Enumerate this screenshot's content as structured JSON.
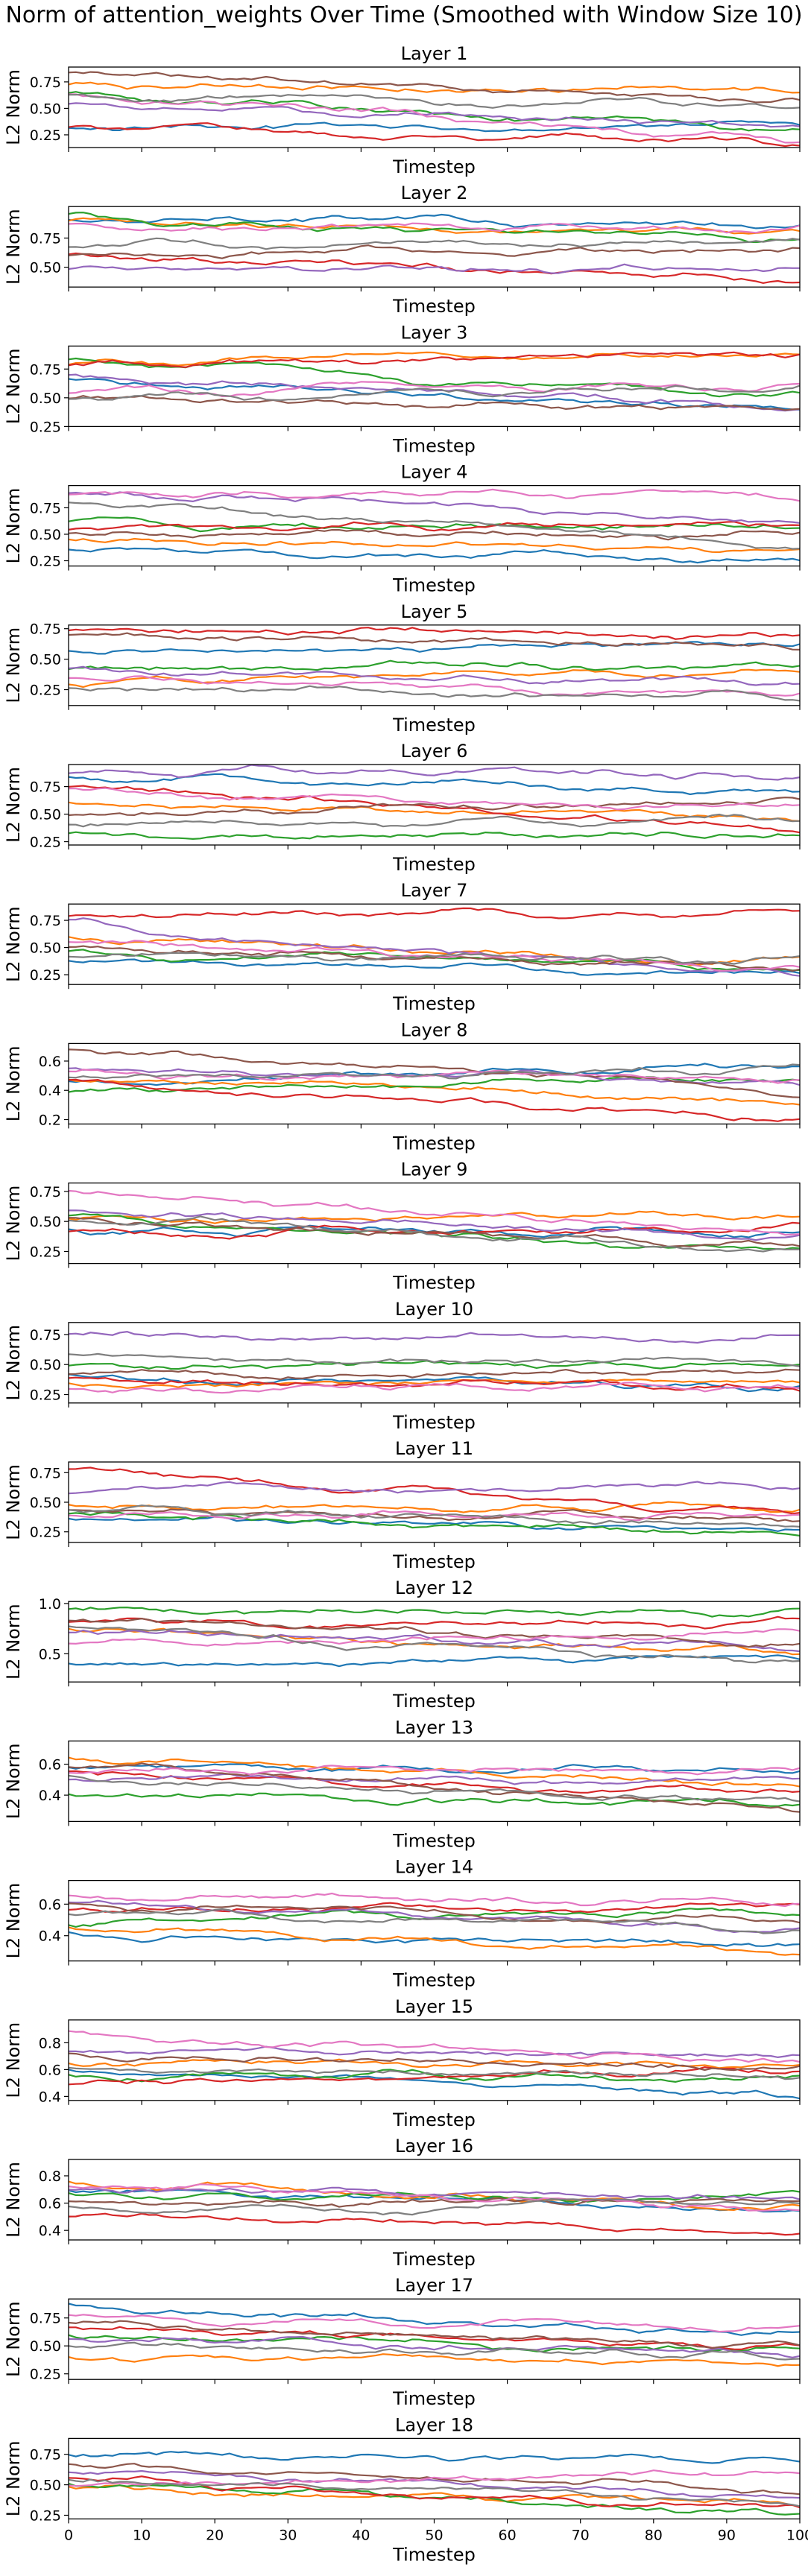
{
  "figure": {
    "title": "Norm of attention_weights Over Time (Smoothed with Window Size 10)",
    "colors": [
      "#1f77b4",
      "#ff7f0e",
      "#2ca02c",
      "#d62728",
      "#9467bd",
      "#8c564b",
      "#e377c2",
      "#7f7f7f"
    ]
  },
  "chart_data": [
    {
      "type": "line",
      "title": "Layer 1",
      "xlabel": "Timestep",
      "ylabel": "L2 Norm",
      "xlim": [
        0,
        100
      ],
      "ylim": [
        0.13,
        0.89
      ],
      "yticks": [
        "0.25",
        "0.50",
        "0.75"
      ],
      "ytick_values": [
        0.25,
        0.5,
        0.75
      ],
      "x_ticks_labeled": false,
      "series": [
        {
          "start": 0.33,
          "end": 0.32
        },
        {
          "start": 0.72,
          "end": 0.65
        },
        {
          "start": 0.62,
          "end": 0.3
        },
        {
          "start": 0.35,
          "end": 0.17
        },
        {
          "start": 0.55,
          "end": 0.35
        },
        {
          "start": 0.85,
          "end": 0.6
        },
        {
          "start": 0.65,
          "end": 0.2
        },
        {
          "start": 0.6,
          "end": 0.55
        }
      ]
    },
    {
      "type": "line",
      "title": "Layer 2",
      "xlabel": "Timestep",
      "ylabel": "L2 Norm",
      "xlim": [
        0,
        100
      ],
      "ylim": [
        0.33,
        1.02
      ],
      "yticks": [
        "0.50",
        "0.75"
      ],
      "ytick_values": [
        0.5,
        0.75
      ],
      "x_ticks_labeled": false,
      "series": [
        {
          "start": 0.95,
          "end": 0.85
        },
        {
          "start": 0.88,
          "end": 0.8
        },
        {
          "start": 0.92,
          "end": 0.75
        },
        {
          "start": 0.6,
          "end": 0.38
        },
        {
          "start": 0.5,
          "end": 0.48
        },
        {
          "start": 0.62,
          "end": 0.65
        },
        {
          "start": 0.85,
          "end": 0.82
        },
        {
          "start": 0.7,
          "end": 0.72
        }
      ]
    },
    {
      "type": "line",
      "title": "Layer 3",
      "xlabel": "Timestep",
      "ylabel": "L2 Norm",
      "xlim": [
        0,
        100
      ],
      "ylim": [
        0.25,
        0.95
      ],
      "yticks": [
        "0.25",
        "0.50",
        "0.75"
      ],
      "ytick_values": [
        0.25,
        0.5,
        0.75
      ],
      "x_ticks_labeled": false,
      "series": [
        {
          "start": 0.65,
          "end": 0.4
        },
        {
          "start": 0.8,
          "end": 0.88
        },
        {
          "start": 0.85,
          "end": 0.5
        },
        {
          "start": 0.78,
          "end": 0.9
        },
        {
          "start": 0.7,
          "end": 0.4
        },
        {
          "start": 0.5,
          "end": 0.38
        },
        {
          "start": 0.55,
          "end": 0.62
        },
        {
          "start": 0.48,
          "end": 0.58
        }
      ]
    },
    {
      "type": "line",
      "title": "Layer 4",
      "xlabel": "Timestep",
      "ylabel": "L2 Norm",
      "xlim": [
        0,
        100
      ],
      "ylim": [
        0.2,
        0.96
      ],
      "yticks": [
        "0.25",
        "0.50",
        "0.75"
      ],
      "ytick_values": [
        0.25,
        0.5,
        0.75
      ],
      "x_ticks_labeled": false,
      "series": [
        {
          "start": 0.35,
          "end": 0.27
        },
        {
          "start": 0.45,
          "end": 0.35
        },
        {
          "start": 0.6,
          "end": 0.55
        },
        {
          "start": 0.55,
          "end": 0.6
        },
        {
          "start": 0.9,
          "end": 0.62
        },
        {
          "start": 0.5,
          "end": 0.48
        },
        {
          "start": 0.92,
          "end": 0.85
        },
        {
          "start": 0.8,
          "end": 0.4
        }
      ]
    },
    {
      "type": "line",
      "title": "Layer 5",
      "xlabel": "Timestep",
      "ylabel": "L2 Norm",
      "xlim": [
        0,
        100
      ],
      "ylim": [
        0.12,
        0.78
      ],
      "yticks": [
        "0.25",
        "0.50",
        "0.75"
      ],
      "ytick_values": [
        0.25,
        0.5,
        0.75
      ],
      "x_ticks_labeled": false,
      "series": [
        {
          "start": 0.55,
          "end": 0.65
        },
        {
          "start": 0.3,
          "end": 0.4
        },
        {
          "start": 0.45,
          "end": 0.45
        },
        {
          "start": 0.75,
          "end": 0.7
        },
        {
          "start": 0.4,
          "end": 0.3
        },
        {
          "start": 0.7,
          "end": 0.6
        },
        {
          "start": 0.35,
          "end": 0.22
        },
        {
          "start": 0.25,
          "end": 0.18
        }
      ]
    },
    {
      "type": "line",
      "title": "Layer 6",
      "xlabel": "Timestep",
      "ylabel": "L2 Norm",
      "xlim": [
        0,
        100
      ],
      "ylim": [
        0.22,
        0.95
      ],
      "yticks": [
        "0.25",
        "0.50",
        "0.75"
      ],
      "ytick_values": [
        0.25,
        0.5,
        0.75
      ],
      "x_ticks_labeled": false,
      "series": [
        {
          "start": 0.85,
          "end": 0.7
        },
        {
          "start": 0.6,
          "end": 0.48
        },
        {
          "start": 0.3,
          "end": 0.3
        },
        {
          "start": 0.75,
          "end": 0.35
        },
        {
          "start": 0.9,
          "end": 0.85
        },
        {
          "start": 0.5,
          "end": 0.65
        },
        {
          "start": 0.7,
          "end": 0.55
        },
        {
          "start": 0.4,
          "end": 0.45
        }
      ]
    },
    {
      "type": "line",
      "title": "Layer 7",
      "xlabel": "Timestep",
      "ylabel": "L2 Norm",
      "xlim": [
        0,
        100
      ],
      "ylim": [
        0.16,
        0.9
      ],
      "yticks": [
        "0.25",
        "0.50",
        "0.75"
      ],
      "ytick_values": [
        0.25,
        0.5,
        0.75
      ],
      "x_ticks_labeled": false,
      "series": [
        {
          "start": 0.4,
          "end": 0.25
        },
        {
          "start": 0.6,
          "end": 0.35
        },
        {
          "start": 0.45,
          "end": 0.3
        },
        {
          "start": 0.8,
          "end": 0.82
        },
        {
          "start": 0.7,
          "end": 0.22
        },
        {
          "start": 0.5,
          "end": 0.28
        },
        {
          "start": 0.55,
          "end": 0.3
        },
        {
          "start": 0.42,
          "end": 0.4
        }
      ]
    },
    {
      "type": "line",
      "title": "Layer 8",
      "xlabel": "Timestep",
      "ylabel": "L2 Norm",
      "xlim": [
        0,
        100
      ],
      "ylim": [
        0.17,
        0.72
      ],
      "yticks": [
        "0.2",
        "0.4",
        "0.6"
      ],
      "ytick_values": [
        0.2,
        0.4,
        0.6
      ],
      "x_ticks_labeled": false,
      "series": [
        {
          "start": 0.45,
          "end": 0.58
        },
        {
          "start": 0.5,
          "end": 0.3
        },
        {
          "start": 0.4,
          "end": 0.5
        },
        {
          "start": 0.45,
          "end": 0.2
        },
        {
          "start": 0.55,
          "end": 0.45
        },
        {
          "start": 0.7,
          "end": 0.4
        },
        {
          "start": 0.5,
          "end": 0.5
        },
        {
          "start": 0.48,
          "end": 0.55
        }
      ]
    },
    {
      "type": "line",
      "title": "Layer 9",
      "xlabel": "Timestep",
      "ylabel": "L2 Norm",
      "xlim": [
        0,
        100
      ],
      "ylim": [
        0.15,
        0.82
      ],
      "yticks": [
        "0.25",
        "0.50",
        "0.75"
      ],
      "ytick_values": [
        0.25,
        0.5,
        0.75
      ],
      "x_ticks_labeled": false,
      "series": [
        {
          "start": 0.45,
          "end": 0.4
        },
        {
          "start": 0.5,
          "end": 0.55
        },
        {
          "start": 0.55,
          "end": 0.22
        },
        {
          "start": 0.4,
          "end": 0.45
        },
        {
          "start": 0.6,
          "end": 0.35
        },
        {
          "start": 0.5,
          "end": 0.3
        },
        {
          "start": 0.75,
          "end": 0.4
        },
        {
          "start": 0.55,
          "end": 0.25
        }
      ]
    },
    {
      "type": "line",
      "title": "Layer 10",
      "xlabel": "Timestep",
      "ylabel": "L2 Norm",
      "xlim": [
        0,
        100
      ],
      "ylim": [
        0.18,
        0.85
      ],
      "yticks": [
        "0.25",
        "0.50",
        "0.75"
      ],
      "ytick_values": [
        0.25,
        0.5,
        0.75
      ],
      "x_ticks_labeled": false,
      "series": [
        {
          "start": 0.4,
          "end": 0.3
        },
        {
          "start": 0.35,
          "end": 0.35
        },
        {
          "start": 0.5,
          "end": 0.5
        },
        {
          "start": 0.4,
          "end": 0.3
        },
        {
          "start": 0.75,
          "end": 0.72
        },
        {
          "start": 0.42,
          "end": 0.45
        },
        {
          "start": 0.3,
          "end": 0.32
        },
        {
          "start": 0.55,
          "end": 0.5
        }
      ]
    },
    {
      "type": "line",
      "title": "Layer 11",
      "xlabel": "Timestep",
      "ylabel": "L2 Norm",
      "xlim": [
        0,
        100
      ],
      "ylim": [
        0.16,
        0.84
      ],
      "yticks": [
        "0.25",
        "0.50",
        "0.75"
      ],
      "ytick_values": [
        0.25,
        0.5,
        0.75
      ],
      "x_ticks_labeled": false,
      "series": [
        {
          "start": 0.35,
          "end": 0.28
        },
        {
          "start": 0.45,
          "end": 0.45
        },
        {
          "start": 0.4,
          "end": 0.25
        },
        {
          "start": 0.78,
          "end": 0.4
        },
        {
          "start": 0.6,
          "end": 0.65
        },
        {
          "start": 0.42,
          "end": 0.35
        },
        {
          "start": 0.4,
          "end": 0.38
        },
        {
          "start": 0.45,
          "end": 0.3
        }
      ]
    },
    {
      "type": "line",
      "title": "Layer 12",
      "xlabel": "Timestep",
      "ylabel": "L2 Norm",
      "xlim": [
        0,
        100
      ],
      "ylim": [
        0.22,
        1.02
      ],
      "yticks": [
        "0.5",
        "1.0"
      ],
      "ytick_values": [
        0.5,
        1.0
      ],
      "x_ticks_labeled": false,
      "series": [
        {
          "start": 0.4,
          "end": 0.45
        },
        {
          "start": 0.75,
          "end": 0.5
        },
        {
          "start": 0.95,
          "end": 0.9
        },
        {
          "start": 0.8,
          "end": 0.8
        },
        {
          "start": 0.7,
          "end": 0.55
        },
        {
          "start": 0.85,
          "end": 0.6
        },
        {
          "start": 0.6,
          "end": 0.7
        },
        {
          "start": 0.75,
          "end": 0.4
        }
      ]
    },
    {
      "type": "line",
      "title": "Layer 13",
      "xlabel": "Timestep",
      "ylabel": "L2 Norm",
      "xlim": [
        0,
        100
      ],
      "ylim": [
        0.23,
        0.75
      ],
      "yticks": [
        "0.4",
        "0.6"
      ],
      "ytick_values": [
        0.4,
        0.6
      ],
      "x_ticks_labeled": false,
      "series": [
        {
          "start": 0.6,
          "end": 0.55
        },
        {
          "start": 0.65,
          "end": 0.45
        },
        {
          "start": 0.4,
          "end": 0.35
        },
        {
          "start": 0.55,
          "end": 0.4
        },
        {
          "start": 0.5,
          "end": 0.5
        },
        {
          "start": 0.6,
          "end": 0.3
        },
        {
          "start": 0.55,
          "end": 0.55
        },
        {
          "start": 0.5,
          "end": 0.35
        }
      ]
    },
    {
      "type": "line",
      "title": "Layer 14",
      "xlabel": "Timestep",
      "ylabel": "L2 Norm",
      "xlim": [
        0,
        100
      ],
      "ylim": [
        0.24,
        0.75
      ],
      "yticks": [
        "0.4",
        "0.6"
      ],
      "ytick_values": [
        0.4,
        0.6
      ],
      "x_ticks_labeled": false,
      "series": [
        {
          "start": 0.4,
          "end": 0.35
        },
        {
          "start": 0.45,
          "end": 0.3
        },
        {
          "start": 0.5,
          "end": 0.55
        },
        {
          "start": 0.55,
          "end": 0.6
        },
        {
          "start": 0.6,
          "end": 0.45
        },
        {
          "start": 0.58,
          "end": 0.5
        },
        {
          "start": 0.65,
          "end": 0.62
        },
        {
          "start": 0.55,
          "end": 0.45
        }
      ]
    },
    {
      "type": "line",
      "title": "Layer 15",
      "xlabel": "Timestep",
      "ylabel": "L2 Norm",
      "xlim": [
        0,
        100
      ],
      "ylim": [
        0.37,
        0.97
      ],
      "yticks": [
        "0.4",
        "0.6",
        "0.8"
      ],
      "ytick_values": [
        0.4,
        0.6,
        0.8
      ],
      "x_ticks_labeled": false,
      "series": [
        {
          "start": 0.6,
          "end": 0.4
        },
        {
          "start": 0.65,
          "end": 0.65
        },
        {
          "start": 0.55,
          "end": 0.55
        },
        {
          "start": 0.5,
          "end": 0.6
        },
        {
          "start": 0.75,
          "end": 0.7
        },
        {
          "start": 0.7,
          "end": 0.6
        },
        {
          "start": 0.85,
          "end": 0.65
        },
        {
          "start": 0.6,
          "end": 0.55
        }
      ]
    },
    {
      "type": "line",
      "title": "Layer 16",
      "xlabel": "Timestep",
      "ylabel": "L2 Norm",
      "xlim": [
        0,
        100
      ],
      "ylim": [
        0.33,
        0.92
      ],
      "yticks": [
        "0.4",
        "0.6",
        "0.8"
      ],
      "ytick_values": [
        0.4,
        0.6,
        0.8
      ],
      "x_ticks_labeled": false,
      "series": [
        {
          "start": 0.7,
          "end": 0.55
        },
        {
          "start": 0.75,
          "end": 0.55
        },
        {
          "start": 0.65,
          "end": 0.65
        },
        {
          "start": 0.5,
          "end": 0.4
        },
        {
          "start": 0.7,
          "end": 0.65
        },
        {
          "start": 0.6,
          "end": 0.6
        },
        {
          "start": 0.75,
          "end": 0.55
        },
        {
          "start": 0.55,
          "end": 0.6
        }
      ]
    },
    {
      "type": "line",
      "title": "Layer 17",
      "xlabel": "Timestep",
      "ylabel": "L2 Norm",
      "xlim": [
        0,
        100
      ],
      "ylim": [
        0.2,
        0.92
      ],
      "yticks": [
        "0.25",
        "0.50",
        "0.75"
      ],
      "ytick_values": [
        0.25,
        0.5,
        0.75
      ],
      "x_ticks_labeled": false,
      "series": [
        {
          "start": 0.85,
          "end": 0.6
        },
        {
          "start": 0.4,
          "end": 0.35
        },
        {
          "start": 0.6,
          "end": 0.45
        },
        {
          "start": 0.65,
          "end": 0.5
        },
        {
          "start": 0.55,
          "end": 0.45
        },
        {
          "start": 0.7,
          "end": 0.5
        },
        {
          "start": 0.75,
          "end": 0.65
        },
        {
          "start": 0.5,
          "end": 0.4
        }
      ]
    },
    {
      "type": "line",
      "title": "Layer 18",
      "xlabel": "Timestep",
      "ylabel": "L2 Norm",
      "xlim": [
        0,
        100
      ],
      "ylim": [
        0.22,
        0.88
      ],
      "yticks": [
        "0.25",
        "0.50",
        "0.75"
      ],
      "ytick_values": [
        0.25,
        0.5,
        0.75
      ],
      "x_ticks_labeled": true,
      "xticks": [
        "0",
        "10",
        "20",
        "30",
        "40",
        "50",
        "60",
        "70",
        "80",
        "90",
        "100"
      ],
      "xtick_values": [
        0,
        10,
        20,
        30,
        40,
        50,
        60,
        70,
        80,
        90,
        100
      ],
      "series": [
        {
          "start": 0.75,
          "end": 0.7
        },
        {
          "start": 0.45,
          "end": 0.35
        },
        {
          "start": 0.5,
          "end": 0.25
        },
        {
          "start": 0.55,
          "end": 0.3
        },
        {
          "start": 0.6,
          "end": 0.4
        },
        {
          "start": 0.65,
          "end": 0.45
        },
        {
          "start": 0.5,
          "end": 0.6
        },
        {
          "start": 0.55,
          "end": 0.35
        }
      ]
    }
  ]
}
